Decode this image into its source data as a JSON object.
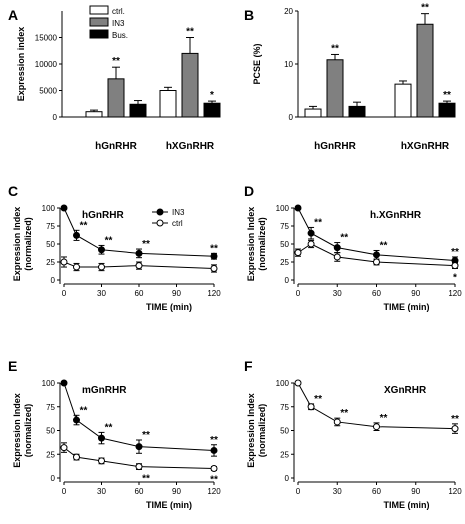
{
  "chart_data": [
    {
      "panel": "A",
      "type": "bar",
      "ylabel": "Expression index",
      "ylim": [
        0,
        20000
      ],
      "yticks": [
        0,
        5000,
        10000,
        15000
      ],
      "groups": [
        "hGnRHR",
        "hXGnRHR"
      ],
      "series": [
        {
          "name": "ctrl.",
          "color": "#ffffff",
          "values": [
            1000,
            5000
          ],
          "errors": [
            300,
            600
          ]
        },
        {
          "name": "IN3",
          "color": "#808080",
          "values": [
            7200,
            12000
          ],
          "errors": [
            2200,
            3000
          ]
        },
        {
          "name": "Bus.",
          "color": "#000000",
          "values": [
            2400,
            2600
          ],
          "errors": [
            700,
            400
          ]
        }
      ],
      "annotations": [
        {
          "group": 0,
          "series": 1,
          "text": "**"
        },
        {
          "group": 1,
          "series": 1,
          "text": "**"
        },
        {
          "group": 1,
          "series": 2,
          "text": "*"
        }
      ]
    },
    {
      "panel": "B",
      "type": "bar",
      "ylabel": "PCSE (%)",
      "ylim": [
        0,
        20
      ],
      "yticks": [
        0,
        10,
        20
      ],
      "groups": [
        "hGnRHR",
        "hXGnRHR"
      ],
      "series": [
        {
          "name": "ctrl.",
          "color": "#ffffff",
          "values": [
            1.5,
            6.2
          ],
          "errors": [
            0.5,
            0.6
          ]
        },
        {
          "name": "IN3",
          "color": "#808080",
          "values": [
            10.8,
            17.5
          ],
          "errors": [
            1.0,
            2.0
          ]
        },
        {
          "name": "Bus.",
          "color": "#000000",
          "values": [
            2.0,
            2.6
          ],
          "errors": [
            0.8,
            0.4
          ]
        }
      ],
      "annotations": [
        {
          "group": 0,
          "series": 1,
          "text": "**"
        },
        {
          "group": 1,
          "series": 1,
          "text": "**"
        },
        {
          "group": 1,
          "series": 2,
          "text": "**"
        }
      ]
    },
    {
      "panel": "C",
      "type": "line",
      "title": "hGnRHR",
      "xlabel": "TIME (min)",
      "ylabel": "Expression Index (normalized)",
      "xlim": [
        0,
        120
      ],
      "ylim": [
        0,
        100
      ],
      "xticks": [
        0,
        30,
        60,
        90,
        120
      ],
      "yticks": [
        0,
        25,
        50,
        75,
        100
      ],
      "legend": "top-right",
      "x": [
        0,
        10,
        30,
        60,
        120
      ],
      "series": [
        {
          "name": "IN3",
          "marker": "filled",
          "values": [
            100,
            62,
            42,
            37,
            33
          ],
          "errors": [
            0,
            7,
            6,
            6,
            4
          ]
        },
        {
          "name": "ctrl",
          "marker": "open",
          "values": [
            25,
            18,
            18,
            20,
            16
          ],
          "errors": [
            7,
            5,
            5,
            5,
            5
          ]
        }
      ],
      "annotations": [
        {
          "x": 10,
          "series": 0,
          "text": "**"
        },
        {
          "x": 30,
          "series": 0,
          "text": "**"
        },
        {
          "x": 60,
          "series": 0,
          "text": "**"
        },
        {
          "x": 120,
          "series": 0,
          "text": "**"
        }
      ]
    },
    {
      "panel": "D",
      "type": "line",
      "title": "h.XGnRHR",
      "xlabel": "TIME (min)",
      "ylabel": "Expression Index (normalized)",
      "xlim": [
        0,
        120
      ],
      "ylim": [
        0,
        100
      ],
      "xticks": [
        0,
        30,
        60,
        90,
        120
      ],
      "yticks": [
        0,
        25,
        50,
        75,
        100
      ],
      "x": [
        0,
        10,
        30,
        60,
        120
      ],
      "series": [
        {
          "marker": "filled",
          "values": [
            100,
            65,
            45,
            35,
            27
          ],
          "errors": [
            0,
            8,
            7,
            6,
            5
          ]
        },
        {
          "marker": "open",
          "values": [
            38,
            50,
            32,
            25,
            20
          ],
          "errors": [
            5,
            5,
            6,
            4,
            4
          ]
        }
      ],
      "annotations": [
        {
          "x": 10,
          "series": 0,
          "text": "**"
        },
        {
          "x": 30,
          "series": 0,
          "text": "**"
        },
        {
          "x": 60,
          "series": 0,
          "text": "**"
        },
        {
          "x": 120,
          "series": 0,
          "text": "**"
        },
        {
          "x": 120,
          "series": 1,
          "text": "*",
          "below": true
        }
      ]
    },
    {
      "panel": "E",
      "type": "line",
      "title": "mGnRHR",
      "xlabel": "TIME (min)",
      "ylabel": "Expression Index (normalized)",
      "xlim": [
        0,
        120
      ],
      "ylim": [
        0,
        100
      ],
      "xticks": [
        0,
        30,
        60,
        90,
        120
      ],
      "yticks": [
        0,
        25,
        50,
        75,
        100
      ],
      "x": [
        0,
        10,
        30,
        60,
        120
      ],
      "series": [
        {
          "marker": "filled",
          "values": [
            100,
            61,
            42,
            33,
            29
          ],
          "errors": [
            0,
            5,
            6,
            7,
            6
          ]
        },
        {
          "marker": "open",
          "values": [
            32,
            22,
            18,
            12,
            10
          ],
          "errors": [
            5,
            3,
            3,
            3,
            2
          ]
        }
      ],
      "annotations": [
        {
          "x": 10,
          "series": 0,
          "text": "**"
        },
        {
          "x": 30,
          "series": 0,
          "text": "**"
        },
        {
          "x": 60,
          "series": 0,
          "text": "**"
        },
        {
          "x": 120,
          "series": 0,
          "text": "**"
        },
        {
          "x": 60,
          "series": 1,
          "text": "**",
          "below": true
        },
        {
          "x": 120,
          "series": 1,
          "text": "**",
          "below": true
        }
      ]
    },
    {
      "panel": "F",
      "type": "line",
      "title": "XGnRHR",
      "xlabel": "TIME (min)",
      "ylabel": "Expression Index (normalized)",
      "xlim": [
        0,
        120
      ],
      "ylim": [
        0,
        100
      ],
      "xticks": [
        0,
        30,
        60,
        90,
        120
      ],
      "yticks": [
        0,
        25,
        50,
        75,
        100
      ],
      "x": [
        0,
        10,
        30,
        60,
        120
      ],
      "series": [
        {
          "marker": "open",
          "values": [
            100,
            75,
            59,
            54,
            52
          ],
          "errors": [
            0,
            3,
            4,
            4,
            5
          ]
        }
      ],
      "annotations": [
        {
          "x": 10,
          "series": 0,
          "text": "**"
        },
        {
          "x": 30,
          "series": 0,
          "text": "**"
        },
        {
          "x": 60,
          "series": 0,
          "text": "**"
        },
        {
          "x": 120,
          "series": 0,
          "text": "**"
        }
      ]
    }
  ]
}
